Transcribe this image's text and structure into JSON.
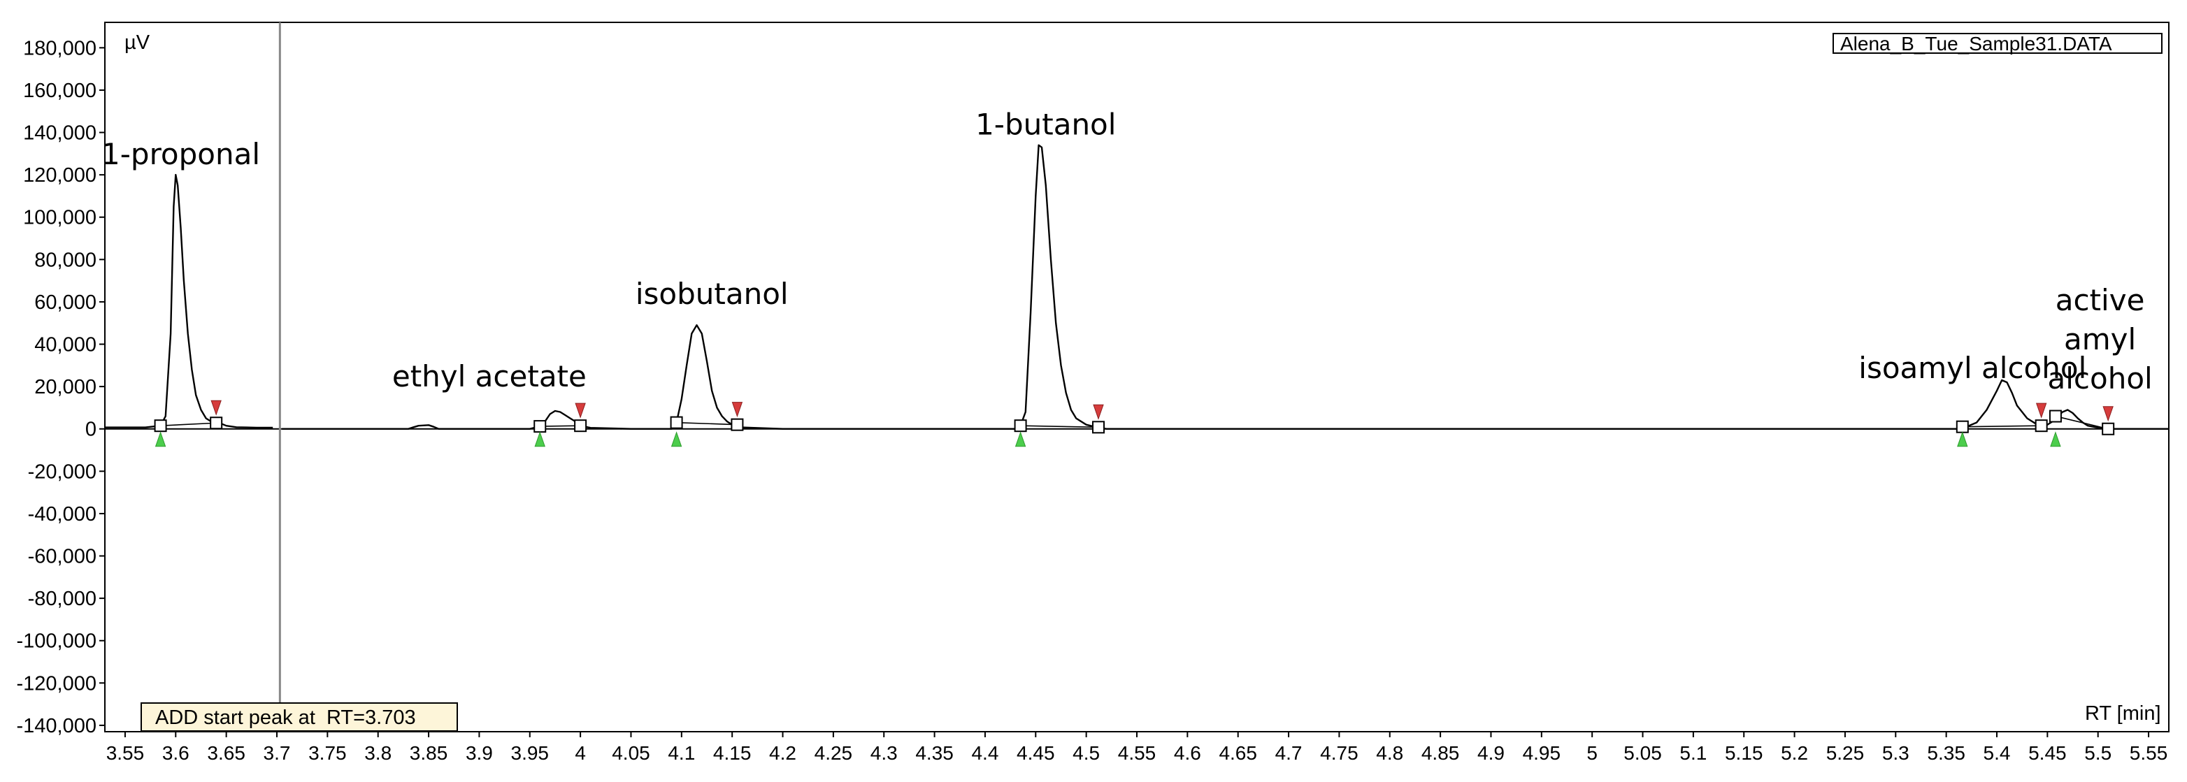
{
  "chart_data": {
    "type": "line",
    "title": "",
    "file_label": "Alena_B_Tue_Sample31.DATA",
    "ylabel": "µV",
    "xlabel": "RT [min]",
    "status_message": "ADD start peak at  RT=3.703",
    "xlim": [
      3.53,
      5.57
    ],
    "ylim": [
      -143000,
      192000
    ],
    "yticks": [
      180000,
      160000,
      140000,
      120000,
      100000,
      80000,
      60000,
      40000,
      20000,
      0,
      -20000,
      -40000,
      -60000,
      -80000,
      -100000,
      -120000,
      -140000
    ],
    "ytick_labels": [
      "180,000",
      "160,000",
      "140,000",
      "120,000",
      "100,000",
      "80,000",
      "60,000",
      "40,000",
      "20,000",
      "0",
      "-20,000",
      "-40,000",
      "-60,000",
      "-80,000",
      "-100,000",
      "-120,000",
      "-140,000"
    ],
    "xticks": [
      3.55,
      3.6,
      3.65,
      3.7,
      3.75,
      3.8,
      3.85,
      3.9,
      3.95,
      4.0,
      4.05,
      4.1,
      4.15,
      4.2,
      4.25,
      4.3,
      4.35,
      4.4,
      4.45,
      4.5,
      4.55,
      4.6,
      4.65,
      4.7,
      4.75,
      4.8,
      4.85,
      4.9,
      4.95,
      5.0,
      5.05,
      5.1,
      5.15,
      5.2,
      5.25,
      5.3,
      5.35,
      5.4,
      5.45,
      5.5,
      5.55
    ],
    "xtick_labels": [
      "3.55",
      "3.6",
      "3.65",
      "3.7",
      "3.75",
      "3.8",
      "3.85",
      "3.9",
      "3.95",
      "4",
      "4.05",
      "4.1",
      "4.15",
      "4.2",
      "4.25",
      "4.3",
      "4.35",
      "4.4",
      "4.45",
      "4.5",
      "4.55",
      "4.6",
      "4.65",
      "4.7",
      "4.75",
      "4.8",
      "4.85",
      "4.9",
      "4.95",
      "5",
      "5.05",
      "5.1",
      "5.15",
      "5.2",
      "5.25",
      "5.3",
      "5.35",
      "5.4",
      "5.45",
      "5.5",
      "5.55"
    ],
    "cursor_rt": 3.703,
    "series": [
      {
        "x": [
          3.53,
          3.57,
          3.585,
          3.59,
          3.595,
          3.598,
          3.6,
          3.602,
          3.605,
          3.608,
          3.612,
          3.616,
          3.62,
          3.625,
          3.63,
          3.635,
          3.64,
          3.645,
          3.65,
          3.66,
          3.67,
          3.68,
          3.69,
          3.696
        ],
        "y": [
          700,
          700,
          1500,
          6000,
          45000,
          105000,
          120000,
          115000,
          95000,
          70000,
          45000,
          28000,
          16000,
          9000,
          5000,
          3500,
          2800,
          2500,
          1500,
          800,
          700,
          600,
          600,
          600
        ]
      },
      {
        "x": [
          3.705,
          3.73,
          3.83,
          3.835,
          3.84,
          3.85,
          3.855,
          3.86,
          3.95,
          3.96,
          3.965,
          3.97,
          3.975,
          3.98,
          3.985,
          3.99,
          3.995,
          4.0,
          4.01,
          4.05,
          4.09,
          4.095,
          4.1,
          4.105,
          4.11,
          4.115,
          4.12,
          4.125,
          4.13,
          4.135,
          4.14,
          4.145,
          4.15,
          4.16,
          4.2,
          4.25,
          4.3,
          4.35,
          4.4,
          4.43,
          4.435,
          4.44,
          4.445,
          4.45,
          4.453,
          4.456,
          4.46,
          4.465,
          4.47,
          4.475,
          4.48,
          4.485,
          4.49,
          4.5,
          4.51,
          4.52,
          4.55,
          4.6,
          4.7,
          4.8,
          4.9,
          5.0,
          5.1,
          5.2,
          5.3,
          5.36,
          5.37,
          5.38,
          5.39,
          5.4,
          5.405,
          5.41,
          5.415,
          5.42,
          5.43,
          5.44,
          5.445,
          5.45,
          5.455,
          5.46,
          5.465,
          5.47,
          5.475,
          5.48,
          5.485,
          5.49,
          5.5,
          5.51,
          5.57
        ],
        "y": [
          0,
          0,
          0,
          800,
          1500,
          1800,
          1000,
          0,
          0,
          1200,
          3500,
          7000,
          8500,
          8000,
          6500,
          5000,
          3500,
          1500,
          500,
          0,
          0,
          3000,
          14000,
          30000,
          45000,
          49000,
          45000,
          32000,
          18000,
          10000,
          6000,
          3500,
          2000,
          700,
          0,
          0,
          0,
          0,
          0,
          0,
          1500,
          8000,
          55000,
          110000,
          134000,
          133000,
          115000,
          80000,
          50000,
          30000,
          17000,
          9000,
          5000,
          2000,
          800,
          0,
          0,
          0,
          0,
          0,
          0,
          0,
          0,
          0,
          0,
          0,
          1000,
          3000,
          9000,
          18000,
          23000,
          22000,
          17000,
          11000,
          5000,
          2000,
          1500,
          2000,
          3500,
          6000,
          8000,
          9000,
          7500,
          5000,
          3000,
          1500,
          600,
          0,
          0
        ]
      }
    ],
    "peaks": [
      {
        "label": "1-proponal",
        "start": 3.585,
        "end": 3.64
      },
      {
        "label": "ethyl acetate",
        "start": 3.96,
        "end": 4.0
      },
      {
        "label": "isobutanol",
        "start": 4.095,
        "end": 4.155
      },
      {
        "label": "1-butanol",
        "start": 4.435,
        "end": 4.512
      },
      {
        "label": "isoamyl alcohol",
        "start": 5.366,
        "end": 5.444
      },
      {
        "label": "active amyl alcohol",
        "start": 5.458,
        "end": 5.51
      }
    ],
    "peak_label_lines": [
      [
        "1-proponal"
      ],
      [
        "ethyl acetate"
      ],
      [
        "isobutanol"
      ],
      [
        "1-butanol"
      ],
      [
        "isoamyl alcohol"
      ],
      [
        "active",
        "amyl",
        "alcohol"
      ]
    ],
    "colors": {
      "trace": "#000000",
      "start_marker": "#4ccd4c",
      "end_marker": "#d63c3c",
      "cursor": "#888888",
      "status_bg": "#fdf5d9"
    }
  }
}
